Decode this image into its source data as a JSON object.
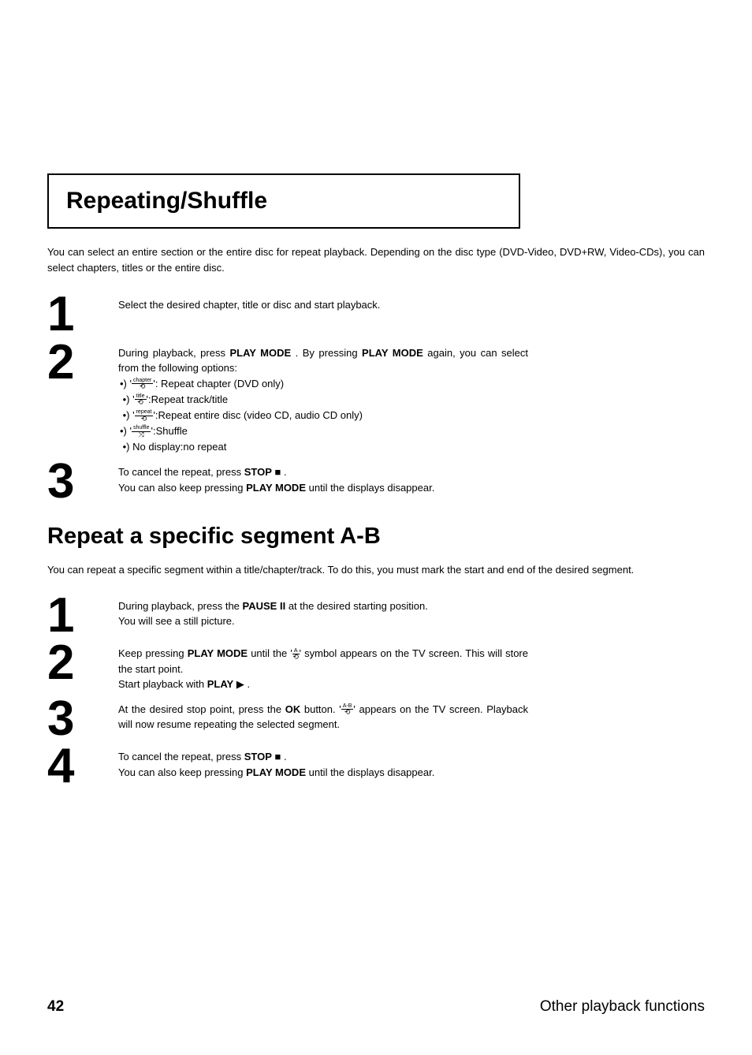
{
  "section1": {
    "heading": "Repeating/Shuffle",
    "intro": "You can select an entire section or the entire disc for repeat playback. Depending on the disc type (DVD-Video, DVD+RW, Video-CDs), you can select chapters, titles or the entire disc.",
    "steps": [
      {
        "num": "1",
        "text": "Select the desired chapter, title or disc and start playback."
      },
      {
        "num": "2",
        "text_a": "During playback, press ",
        "key_a": "PLAY MODE",
        "text_b": " . By pressing ",
        "key_b": "PLAY MODE",
        "text_c": " again, you can select from the following options:",
        "options": [
          {
            "icon_label": "chapter",
            "desc": "': Repeat chapter (DVD only)"
          },
          {
            "icon_label": "title",
            "desc": "':Repeat track/title"
          },
          {
            "icon_label": "repeat",
            "desc": "':Repeat entire disc (video CD, audio CD only)"
          },
          {
            "icon_label": "shuffle",
            "desc": "':Shuffle"
          },
          {
            "plain": "No display:no repeat"
          }
        ]
      },
      {
        "num": "3",
        "text_a": "To cancel the repeat, press ",
        "key_a": "STOP",
        "sym_a": "■",
        "text_b": " .",
        "text_c": "You can also keep pressing ",
        "key_c": "PLAY MODE",
        "text_d": " until the displays disappear."
      }
    ]
  },
  "section2": {
    "heading": "Repeat a specific segment A-B",
    "intro": "You can repeat a specific segment within a title/chapter/track. To do this, you must mark the start and end of the desired segment.",
    "steps": [
      {
        "num": "1",
        "text_a": "During playback, press the ",
        "key_a": "PAUSE",
        "sym_a": "II",
        "text_b": " at the desired starting position.",
        "text_c": "You will see a still picture."
      },
      {
        "num": "2",
        "text_a": "Keep pressing ",
        "key_a": "PLAY MODE",
        "text_b": " until the '",
        "icon_label": "A",
        "text_c": "' symbol appears on the TV screen. This will store the start point.",
        "text_d": "Start playback with ",
        "key_d": "PLAY",
        "sym_d": "▶",
        "text_e": " ."
      },
      {
        "num": "3",
        "text_a": "At the desired stop point, press the ",
        "key_a": "OK",
        "text_b": " button. '",
        "icon_label": "A-B",
        "text_c": "' appears on the TV screen. Playback will now resume repeating the selected segment."
      },
      {
        "num": "4",
        "text_a": "To cancel the repeat, press ",
        "key_a": "STOP",
        "sym_a": "■",
        "text_b": " .",
        "text_c": "You can also keep pressing ",
        "key_c": "PLAY MODE",
        "text_d": " until the displays disappear."
      }
    ]
  },
  "footer": {
    "page": "42",
    "title": "Other playback functions"
  },
  "style": {
    "background": "#ffffff",
    "text_color": "#000000",
    "border_color": "#000000",
    "body_fontsize": 13,
    "heading_fontsize": 30,
    "stepnum_fontsize": 62,
    "sub_heading_fontsize": 29,
    "footer_fontsize": 19
  }
}
